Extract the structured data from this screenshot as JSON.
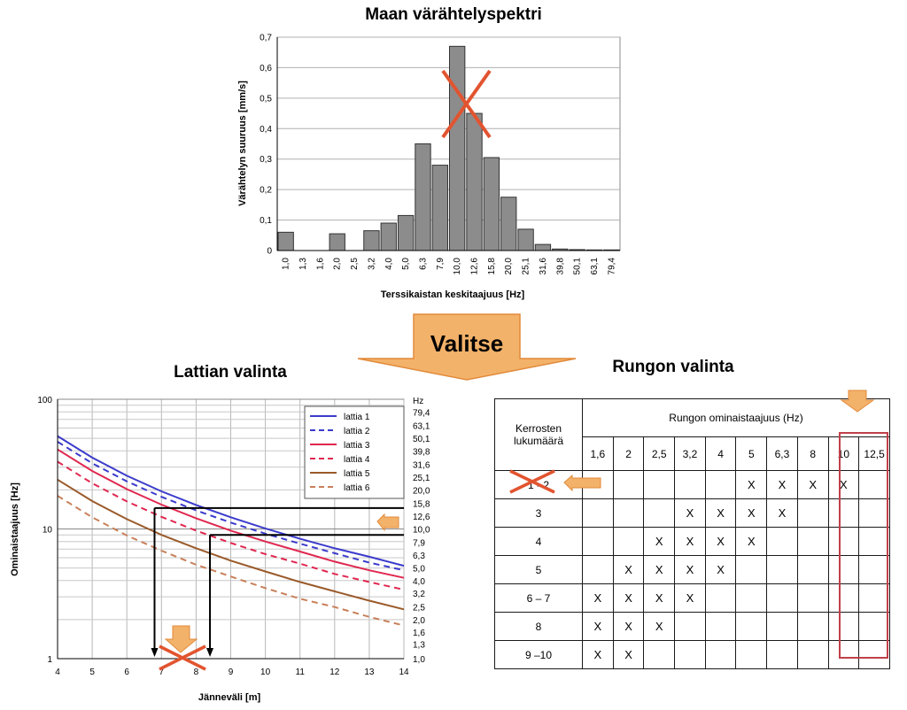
{
  "titles": {
    "spectrum": "Maan värähtelyspektri",
    "floor": "Lattian valinta",
    "frame": "Rungon valinta"
  },
  "arrow_label": "Valitse",
  "colors": {
    "bar_fill": "#8c8c8c",
    "cross": "#e2542f",
    "orange_arrow": "#f3b26a",
    "highlight": "#c0404a",
    "lattia1": "#3b3bcc",
    "lattia2": "#3b3bcc",
    "lattia3": "#e0274f",
    "lattia4": "#e0274f",
    "lattia5": "#9a5a2a",
    "lattia6": "#c8805a"
  },
  "chart_data": [
    {
      "type": "bar",
      "title": "Maan värähtelyspektri",
      "xlabel": "Terssikaistan keskitaajuus [Hz]",
      "ylabel": "Värähtelyn suuruus [mm/s]",
      "ylim": [
        0,
        0.7
      ],
      "yticks": [
        "0",
        "0,1",
        "0,2",
        "0,3",
        "0,4",
        "0,5",
        "0,6",
        "0,7"
      ],
      "grid": true,
      "categories": [
        "1,0",
        "1,3",
        "1,6",
        "2,0",
        "2,5",
        "3,2",
        "4,0",
        "5,0",
        "6,3",
        "7,9",
        "10,0",
        "12,6",
        "15,8",
        "20,0",
        "25,1",
        "31,6",
        "39,8",
        "50,1",
        "63,1",
        "79,4"
      ],
      "values": [
        0.06,
        0.0,
        0.0,
        0.055,
        0.0,
        0.065,
        0.09,
        0.115,
        0.35,
        0.28,
        0.67,
        0.45,
        0.305,
        0.175,
        0.07,
        0.02,
        0.005,
        0.003,
        0.002,
        0.002
      ],
      "annotations": [
        "cross over 10,0 – 12,6 Hz"
      ]
    },
    {
      "type": "line",
      "xlabel": "Jänneväli  [m]",
      "ylabel": "Ominaistaajuus  [Hz]",
      "xlim": [
        4,
        14
      ],
      "ylim": [
        1,
        100
      ],
      "yscale": "log",
      "xticks": [
        "4",
        "5",
        "6",
        "7",
        "8",
        "9",
        "10",
        "11",
        "12",
        "13",
        "14"
      ],
      "yticks": [
        "1",
        "10",
        "100"
      ],
      "right_axis_label": "Hz",
      "right_ticks": [
        "79,4",
        "63,1",
        "50,1",
        "39,8",
        "31,6",
        "25,1",
        "20,0",
        "15,8",
        "12,6",
        "10,0",
        "7,9",
        "6,3",
        "5,0",
        "4,0",
        "3,2",
        "2,5",
        "2,0",
        "1,6",
        "1,3",
        "1,0"
      ],
      "legend_position": "top-right",
      "series": [
        {
          "name": "lattia 1",
          "style": "solid",
          "colorKey": "lattia1",
          "x": [
            4,
            5,
            6,
            7,
            8,
            9,
            10,
            11,
            12,
            13,
            14
          ],
          "y": [
            52,
            35.5,
            25.7,
            19.5,
            15.3,
            12.3,
            10.1,
            8.4,
            7.1,
            6.1,
            5.2
          ]
        },
        {
          "name": "lattia 2",
          "style": "dashed",
          "colorKey": "lattia2",
          "x": [
            4,
            5,
            6,
            7,
            8,
            9,
            10,
            11,
            12,
            13,
            14
          ],
          "y": [
            47,
            32.1,
            23.3,
            17.7,
            13.9,
            11.2,
            9.2,
            7.7,
            6.5,
            5.5,
            4.8
          ]
        },
        {
          "name": "lattia 3",
          "style": "solid",
          "colorKey": "lattia3",
          "x": [
            4,
            5,
            6,
            7,
            8,
            9,
            10,
            11,
            12,
            13,
            14
          ],
          "y": [
            41,
            28,
            20.3,
            15.4,
            12.1,
            9.7,
            8.0,
            6.7,
            5.6,
            4.8,
            4.2
          ]
        },
        {
          "name": "lattia 4",
          "style": "dashed",
          "colorKey": "lattia4",
          "x": [
            4,
            5,
            6,
            7,
            8,
            9,
            10,
            11,
            12,
            13,
            14
          ],
          "y": [
            33,
            22.5,
            16.3,
            12.4,
            9.7,
            7.8,
            6.4,
            5.4,
            4.5,
            3.9,
            3.4
          ]
        },
        {
          "name": "lattia 5",
          "style": "solid",
          "colorKey": "lattia5",
          "x": [
            4,
            5,
            6,
            7,
            8,
            9,
            10,
            11,
            12,
            13,
            14
          ],
          "y": [
            24,
            16.4,
            11.9,
            9.0,
            7.1,
            5.7,
            4.7,
            3.9,
            3.3,
            2.8,
            2.4
          ]
        },
        {
          "name": "lattia 6",
          "style": "dashed",
          "colorKey": "lattia6",
          "x": [
            4,
            5,
            6,
            7,
            8,
            9,
            10,
            11,
            12,
            13,
            14
          ],
          "y": [
            18,
            12.3,
            8.9,
            6.8,
            5.3,
            4.3,
            3.5,
            2.9,
            2.5,
            2.1,
            1.8
          ]
        }
      ],
      "guides": [
        {
          "y": 14.5,
          "x_drop": 6.8
        },
        {
          "y": 9.0,
          "x_drop": 8.4
        }
      ]
    }
  ],
  "table": {
    "row_header": "Kerrosten lukumäärä",
    "col_group_header": "Rungon ominaistaajuus (Hz)",
    "frequencies": [
      "1,6",
      "2",
      "2,5",
      "3,2",
      "4",
      "5",
      "6,3",
      "8",
      "10",
      "12,5"
    ],
    "rows": [
      {
        "label": "1 - 2",
        "cells": [
          "",
          "",
          "",
          "",
          "",
          "X",
          "X",
          "X",
          "X",
          ""
        ]
      },
      {
        "label": "3",
        "cells": [
          "",
          "",
          "",
          "X",
          "X",
          "X",
          "X",
          "",
          "",
          ""
        ]
      },
      {
        "label": "4",
        "cells": [
          "",
          "",
          "X",
          "X",
          "X",
          "X",
          "",
          "",
          "",
          ""
        ]
      },
      {
        "label": "5",
        "cells": [
          "",
          "X",
          "X",
          "X",
          "X",
          "",
          "",
          "",
          "",
          ""
        ]
      },
      {
        "label": "6 – 7",
        "cells": [
          "X",
          "X",
          "X",
          "X",
          "",
          "",
          "",
          "",
          "",
          ""
        ]
      },
      {
        "label": "8",
        "cells": [
          "X",
          "X",
          "X",
          "",
          "",
          "",
          "",
          "",
          "",
          ""
        ]
      },
      {
        "label": "9 –10",
        "cells": [
          "X",
          "X",
          "",
          "",
          "",
          "",
          "",
          "",
          "",
          ""
        ]
      }
    ]
  }
}
